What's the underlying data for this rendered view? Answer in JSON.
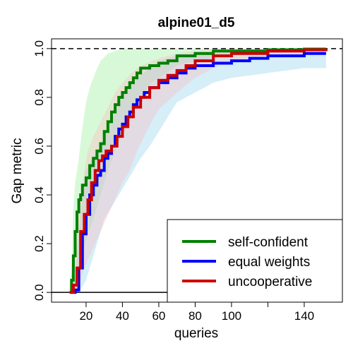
{
  "chart_data": {
    "type": "line",
    "title": "alpine01_d5",
    "xlabel": "queries",
    "ylabel": "Gap metric",
    "xlim": [
      1,
      161
    ],
    "ylim": [
      -0.04,
      1.04
    ],
    "x_ticks": [
      {
        "value": 20,
        "label": "20"
      },
      {
        "value": 40,
        "label": "40"
      },
      {
        "value": 60,
        "label": "60"
      },
      {
        "value": 80,
        "label": "80"
      },
      {
        "value": 100,
        "label": "100"
      },
      {
        "value": 140,
        "label": "140"
      }
    ],
    "x_minor_ticks": [
      120
    ],
    "y_ticks": [
      {
        "value": 0.0,
        "label": "0.0"
      },
      {
        "value": 0.2,
        "label": "0.2"
      },
      {
        "value": 0.4,
        "label": "0.4"
      },
      {
        "value": 0.6,
        "label": "0.6"
      },
      {
        "value": 0.8,
        "label": "0.8"
      },
      {
        "value": 1.0,
        "label": "1.0"
      }
    ],
    "reference_lines": [
      {
        "y": 1.0,
        "style": "dashed",
        "color": "#000000"
      },
      {
        "y": 0.0,
        "style": "solid",
        "color": "#000000"
      }
    ],
    "legend_position": "bottom-right",
    "series": [
      {
        "name": "self-confident",
        "color": "#008000",
        "band_color": "#90EE90",
        "band_opacity": 0.35,
        "points": [
          [
            11,
            0
          ],
          [
            12,
            0.05
          ],
          [
            13,
            0.15
          ],
          [
            14,
            0.25
          ],
          [
            15,
            0.33
          ],
          [
            16,
            0.38
          ],
          [
            17,
            0.4
          ],
          [
            18,
            0.44
          ],
          [
            20,
            0.47
          ],
          [
            22,
            0.52
          ],
          [
            24,
            0.55
          ],
          [
            26,
            0.58
          ],
          [
            28,
            0.61
          ],
          [
            30,
            0.66
          ],
          [
            32,
            0.7
          ],
          [
            34,
            0.74
          ],
          [
            36,
            0.77
          ],
          [
            38,
            0.8
          ],
          [
            40,
            0.82
          ],
          [
            42,
            0.84
          ],
          [
            44,
            0.86
          ],
          [
            46,
            0.88
          ],
          [
            48,
            0.9
          ],
          [
            50,
            0.92
          ],
          [
            55,
            0.93
          ],
          [
            60,
            0.94
          ],
          [
            65,
            0.95
          ],
          [
            70,
            0.97
          ],
          [
            80,
            0.98
          ],
          [
            90,
            0.99
          ],
          [
            100,
            0.99
          ],
          [
            120,
            0.995
          ],
          [
            140,
            0.998
          ],
          [
            152,
            1.0
          ]
        ],
        "upper": [
          [
            11,
            0.02
          ],
          [
            12,
            0.1
          ],
          [
            13,
            0.35
          ],
          [
            14,
            0.45
          ],
          [
            16,
            0.55
          ],
          [
            18,
            0.68
          ],
          [
            20,
            0.78
          ],
          [
            22,
            0.84
          ],
          [
            25,
            0.9
          ],
          [
            28,
            0.95
          ],
          [
            32,
            0.98
          ],
          [
            40,
            1.0
          ],
          [
            60,
            1.0
          ],
          [
            100,
            1.0
          ],
          [
            152,
            1.0
          ]
        ],
        "lower": [
          [
            11,
            0
          ],
          [
            14,
            0
          ],
          [
            16,
            0.05
          ],
          [
            18,
            0.15
          ],
          [
            20,
            0.22
          ],
          [
            24,
            0.3
          ],
          [
            28,
            0.4
          ],
          [
            32,
            0.5
          ],
          [
            36,
            0.58
          ],
          [
            40,
            0.64
          ],
          [
            44,
            0.7
          ],
          [
            48,
            0.77
          ],
          [
            52,
            0.82
          ],
          [
            56,
            0.86
          ],
          [
            60,
            0.88
          ],
          [
            70,
            0.93
          ],
          [
            80,
            0.95
          ],
          [
            100,
            0.97
          ],
          [
            120,
            0.98
          ],
          [
            152,
            0.99
          ]
        ]
      },
      {
        "name": "equal weights",
        "color": "#0000FF",
        "band_color": "#87CEEB",
        "band_opacity": 0.35,
        "points": [
          [
            12,
            0
          ],
          [
            14,
            0.01
          ],
          [
            16,
            0.1
          ],
          [
            18,
            0.24
          ],
          [
            20,
            0.32
          ],
          [
            22,
            0.4
          ],
          [
            24,
            0.44
          ],
          [
            26,
            0.48
          ],
          [
            28,
            0.5
          ],
          [
            30,
            0.55
          ],
          [
            32,
            0.57
          ],
          [
            34,
            0.6
          ],
          [
            36,
            0.64
          ],
          [
            38,
            0.67
          ],
          [
            40,
            0.69
          ],
          [
            42,
            0.72
          ],
          [
            44,
            0.74
          ],
          [
            46,
            0.77
          ],
          [
            48,
            0.79
          ],
          [
            50,
            0.8
          ],
          [
            52,
            0.82
          ],
          [
            55,
            0.84
          ],
          [
            60,
            0.86
          ],
          [
            65,
            0.88
          ],
          [
            70,
            0.9
          ],
          [
            75,
            0.92
          ],
          [
            80,
            0.93
          ],
          [
            90,
            0.94
          ],
          [
            100,
            0.95
          ],
          [
            110,
            0.96
          ],
          [
            120,
            0.97
          ],
          [
            140,
            0.98
          ],
          [
            152,
            0.98
          ]
        ],
        "upper": [
          [
            12,
            0.02
          ],
          [
            14,
            0.05
          ],
          [
            16,
            0.25
          ],
          [
            18,
            0.4
          ],
          [
            20,
            0.5
          ],
          [
            24,
            0.56
          ],
          [
            28,
            0.6
          ],
          [
            32,
            0.68
          ],
          [
            36,
            0.74
          ],
          [
            40,
            0.8
          ],
          [
            44,
            0.84
          ],
          [
            48,
            0.88
          ],
          [
            52,
            0.9
          ],
          [
            56,
            0.93
          ],
          [
            60,
            0.95
          ],
          [
            70,
            0.97
          ],
          [
            80,
            0.98
          ],
          [
            100,
            0.99
          ],
          [
            152,
            0.99
          ]
        ],
        "lower": [
          [
            12,
            0
          ],
          [
            16,
            0
          ],
          [
            20,
            0.05
          ],
          [
            22,
            0.1
          ],
          [
            24,
            0.15
          ],
          [
            26,
            0.2
          ],
          [
            28,
            0.25
          ],
          [
            30,
            0.3
          ],
          [
            34,
            0.35
          ],
          [
            38,
            0.4
          ],
          [
            42,
            0.45
          ],
          [
            46,
            0.5
          ],
          [
            50,
            0.55
          ],
          [
            55,
            0.6
          ],
          [
            60,
            0.66
          ],
          [
            65,
            0.72
          ],
          [
            70,
            0.78
          ],
          [
            80,
            0.82
          ],
          [
            90,
            0.86
          ],
          [
            100,
            0.88
          ],
          [
            120,
            0.9
          ],
          [
            140,
            0.92
          ],
          [
            152,
            0.92
          ]
        ]
      },
      {
        "name": "uncooperative",
        "color": "#CC0000",
        "band_color": "#FFB6C1",
        "band_opacity": 0.35,
        "points": [
          [
            11,
            0
          ],
          [
            13,
            0.03
          ],
          [
            15,
            0.1
          ],
          [
            17,
            0.25
          ],
          [
            19,
            0.32
          ],
          [
            21,
            0.38
          ],
          [
            23,
            0.45
          ],
          [
            25,
            0.5
          ],
          [
            27,
            0.54
          ],
          [
            29,
            0.56
          ],
          [
            31,
            0.58
          ],
          [
            34,
            0.6
          ],
          [
            37,
            0.64
          ],
          [
            40,
            0.68
          ],
          [
            43,
            0.72
          ],
          [
            46,
            0.76
          ],
          [
            50,
            0.8
          ],
          [
            55,
            0.84
          ],
          [
            60,
            0.87
          ],
          [
            65,
            0.89
          ],
          [
            70,
            0.91
          ],
          [
            75,
            0.93
          ],
          [
            80,
            0.95
          ],
          [
            90,
            0.97
          ],
          [
            100,
            0.98
          ],
          [
            120,
            0.99
          ],
          [
            140,
            0.995
          ],
          [
            152,
            1.0
          ]
        ],
        "upper": [
          [
            11,
            0.02
          ],
          [
            13,
            0.1
          ],
          [
            15,
            0.25
          ],
          [
            17,
            0.4
          ],
          [
            19,
            0.5
          ],
          [
            21,
            0.58
          ],
          [
            24,
            0.64
          ],
          [
            28,
            0.7
          ],
          [
            32,
            0.76
          ],
          [
            36,
            0.82
          ],
          [
            40,
            0.86
          ],
          [
            45,
            0.9
          ],
          [
            50,
            0.93
          ],
          [
            60,
            0.96
          ],
          [
            70,
            0.98
          ],
          [
            80,
            0.99
          ],
          [
            100,
            1.0
          ],
          [
            152,
            1.0
          ]
        ],
        "lower": [
          [
            11,
            0
          ],
          [
            15,
            0
          ],
          [
            17,
            0.05
          ],
          [
            19,
            0.1
          ],
          [
            22,
            0.15
          ],
          [
            25,
            0.2
          ],
          [
            28,
            0.25
          ],
          [
            31,
            0.3
          ],
          [
            34,
            0.35
          ],
          [
            37,
            0.4
          ],
          [
            40,
            0.45
          ],
          [
            44,
            0.5
          ],
          [
            48,
            0.58
          ],
          [
            52,
            0.64
          ],
          [
            56,
            0.7
          ],
          [
            60,
            0.75
          ],
          [
            70,
            0.82
          ],
          [
            80,
            0.88
          ],
          [
            90,
            0.92
          ],
          [
            100,
            0.95
          ],
          [
            120,
            0.97
          ],
          [
            152,
            0.98
          ]
        ]
      }
    ]
  }
}
